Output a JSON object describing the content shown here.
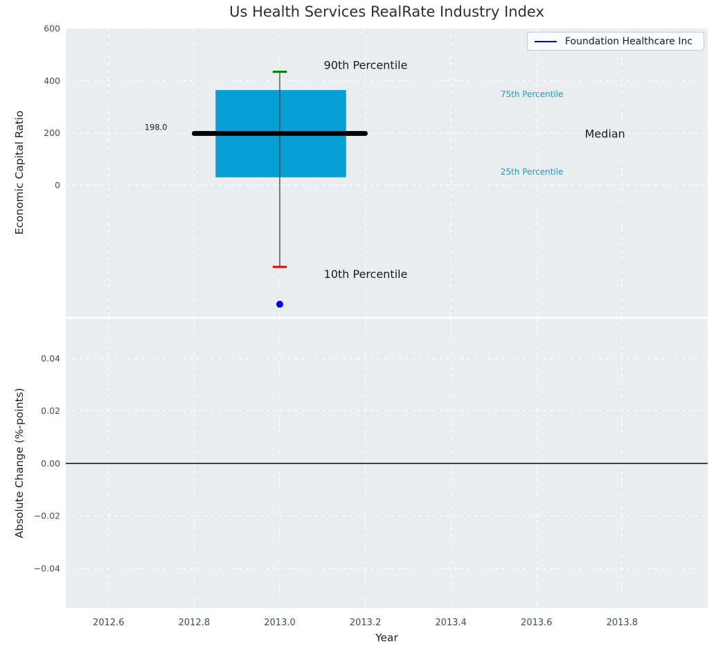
{
  "title": "Us Health Services RealRate Industry Index",
  "legend": {
    "label": "Foundation Healthcare Inc",
    "line_color": "#0000ee",
    "position": "upper right"
  },
  "colors": {
    "plot_bg": "#e9edef",
    "grid": "#ffffff",
    "box_fill": "#089fd5",
    "median_line": "#000000",
    "whisker": "#3f3f3f",
    "p90_cap": "#008000",
    "p10_cap": "#ee0000",
    "company": "#0000ee",
    "tick_label": "#3e4c61",
    "zero_line": "#000000",
    "percentile_label": "#1e9ac8"
  },
  "chart_data": [
    {
      "type": "boxplot",
      "panel": "top",
      "title": "Us Health Services RealRate Industry Index",
      "ylabel": "Economic Capital Ratio",
      "xlim": [
        2012.5,
        2014.0
      ],
      "ylim": [
        -504,
        600
      ],
      "grid": true,
      "yticks": [
        {
          "v": 0,
          "label": "0"
        },
        {
          "v": 200,
          "label": "200"
        },
        {
          "v": 400,
          "label": "400"
        },
        {
          "v": 600,
          "label": "600"
        }
      ],
      "box": {
        "x_center": 2013.0,
        "box_left": 2012.85,
        "box_right": 2013.155,
        "q1": 30,
        "median": 198,
        "q3": 364,
        "p10": -313,
        "p90": 434,
        "cap_halfwidth": 0.0165,
        "median_line_left": 2012.8,
        "median_line_right": 2013.2
      },
      "company_point": {
        "name": "Foundation Healthcare Inc",
        "x": 2013.0,
        "y": -456
      },
      "annotations": [
        {
          "text": "90th Percentile",
          "x": 2013.103,
          "y": 459,
          "color": "#1a1a1a",
          "size": 16,
          "anchor": "start"
        },
        {
          "text": "10th Percentile",
          "x": 2013.103,
          "y": -340,
          "color": "#1a1a1a",
          "size": 16,
          "anchor": "start"
        },
        {
          "text": "75th Percentile",
          "x": 2013.516,
          "y": 349,
          "color": "#1e9ac8",
          "size": 12,
          "anchor": "start"
        },
        {
          "text": "25th Percentile",
          "x": 2013.516,
          "y": 51,
          "color": "#1e9ac8",
          "size": 12,
          "anchor": "start"
        },
        {
          "text": "Median",
          "x": 2013.713,
          "y": 197,
          "color": "#1a1a1a",
          "size": 16,
          "anchor": "start"
        },
        {
          "text": "198.0",
          "x": 2012.684,
          "y": 222,
          "color": "#1a1a1a",
          "size": 11.5,
          "anchor": "start"
        }
      ]
    },
    {
      "type": "line",
      "panel": "bottom",
      "xlabel": "Year",
      "ylabel": "Absolute Change (%-points)",
      "xlim": [
        2012.5,
        2014.0
      ],
      "ylim": [
        -0.055,
        0.055
      ],
      "grid": true,
      "zero_line": 0.0,
      "series": [],
      "yticks": [
        {
          "v": 0.04,
          "label": "0.04"
        },
        {
          "v": 0.02,
          "label": "0.02"
        },
        {
          "v": 0.0,
          "label": "0.00"
        },
        {
          "v": -0.02,
          "label": "−0.02"
        },
        {
          "v": -0.04,
          "label": "−0.04"
        }
      ],
      "xticks": [
        {
          "v": 2012.6,
          "label": "2012.6"
        },
        {
          "v": 2012.8,
          "label": "2012.8"
        },
        {
          "v": 2013.0,
          "label": "2013.0"
        },
        {
          "v": 2013.2,
          "label": "2013.2"
        },
        {
          "v": 2013.4,
          "label": "2013.4"
        },
        {
          "v": 2013.6,
          "label": "2013.6"
        },
        {
          "v": 2013.8,
          "label": "2013.8"
        }
      ]
    }
  ]
}
